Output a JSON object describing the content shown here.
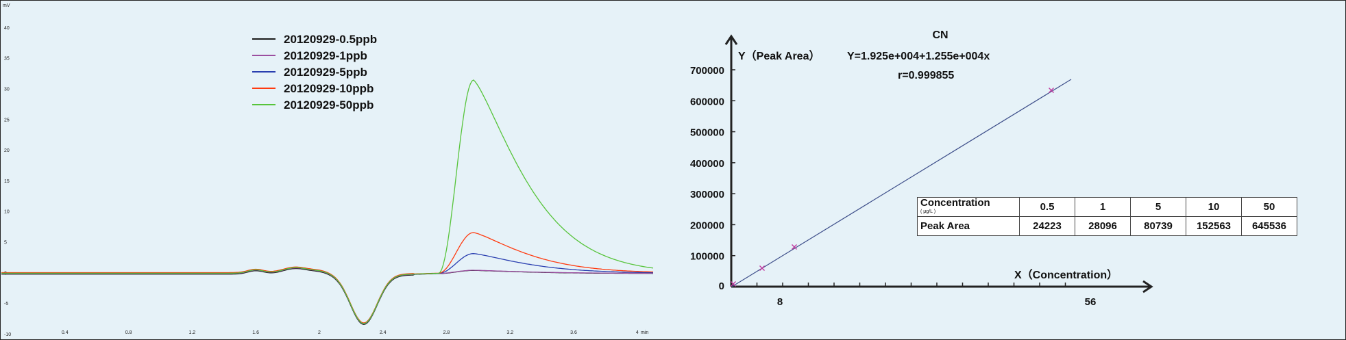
{
  "chart_data": [
    {
      "type": "line",
      "title": "",
      "y_unit_label": "mV",
      "x_unit_label": "min",
      "xlim": [
        0,
        4.1
      ],
      "ylim": [
        -10,
        44
      ],
      "x_ticks": [
        "0.4",
        "0.8",
        "1.2",
        "1.6",
        "2",
        "2.4",
        "2.8",
        "3.2",
        "3.6",
        "4"
      ],
      "y_ticks": [
        "-10",
        "-5",
        "0",
        "5",
        "10",
        "15",
        "20",
        "25",
        "30",
        "35",
        "40"
      ],
      "legend_position": "top-center",
      "series": [
        {
          "name": "20120929-0.5ppb",
          "color": "#1a1a1a",
          "peak_height": 0.5
        },
        {
          "name": "20120929-1ppb",
          "color": "#9b4fa0",
          "peak_height": 0.5
        },
        {
          "name": "20120929-5ppb",
          "color": "#2a3fb0",
          "peak_height": 3.2
        },
        {
          "name": "20120929-10ppb",
          "color": "#ff3b10",
          "peak_height": 6.6
        },
        {
          "name": "20120929-50ppb",
          "color": "#57c43b",
          "peak_height": 31.5
        }
      ],
      "baseline_features": {
        "dip_time": 2.28,
        "dip_value": -8.2,
        "bump_time": 1.85,
        "bump_value": 0.9,
        "peak_time": 2.97
      }
    },
    {
      "type": "scatter",
      "title": "CN",
      "ylabel": "Y（Peak Area）",
      "xlabel": "X（Concentration）",
      "equation": "Y=1.925e+004+1.255e+004x",
      "r_value": "r=0.999855",
      "y_ticks": [
        "0",
        "100000",
        "200000",
        "300000",
        "400000",
        "500000",
        "600000",
        "700000"
      ],
      "x_tick_labels": [
        "8",
        "56"
      ],
      "xlim": [
        0,
        60
      ],
      "ylim": [
        0,
        700000
      ],
      "fit": {
        "intercept": 19250,
        "slope": 12550
      },
      "points": [
        {
          "x": 0.5,
          "y": 24223
        },
        {
          "x": 1,
          "y": 28096
        },
        {
          "x": 5,
          "y": 80739
        },
        {
          "x": 10,
          "y": 152563
        },
        {
          "x": 50,
          "y": 645536
        }
      ],
      "line_color": "#3e4f8a",
      "marker_color": "#c03aa0"
    }
  ],
  "table": {
    "header_label": "Concentration",
    "header_sub": "( μg/L )",
    "row_label": "Peak Area",
    "concentrations": [
      "0.5",
      "1",
      "5",
      "10",
      "50"
    ],
    "areas": [
      "24223",
      "28096",
      "80739",
      "152563",
      "645536"
    ]
  }
}
